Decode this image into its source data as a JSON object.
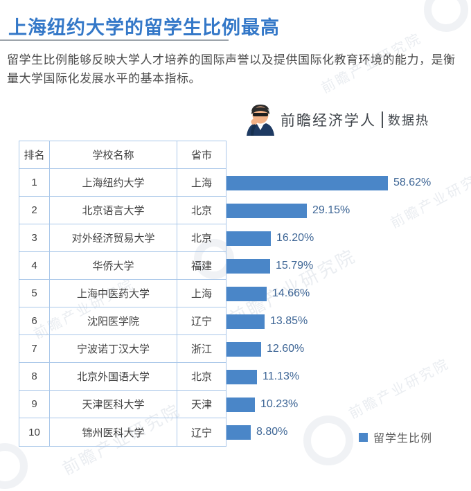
{
  "page": {
    "title": "上海纽约大学的留学生比例最高",
    "description": "留学生比例能够反映大学人才培养的国际声誉以及提供国际化教育环境的能力，是衡量大学国际化发展水平的基本指标。"
  },
  "brand": {
    "name": "前瞻经济学人",
    "divider": "|",
    "sub": "数据热",
    "avatar_icon": "thinking-man-avatar"
  },
  "watermark": {
    "text": "前瞻产业研究院"
  },
  "table": {
    "headers": [
      "排名",
      "学校名称",
      "省市"
    ]
  },
  "chart_data": {
    "type": "bar",
    "orientation": "horizontal",
    "title": "上海纽约大学的留学生比例最高",
    "series_name": "留学生比例",
    "unit": "%",
    "ranks": [
      "1",
      "2",
      "3",
      "4",
      "5",
      "6",
      "7",
      "8",
      "9",
      "10"
    ],
    "categories": [
      "上海纽约大学",
      "北京语言大学",
      "对外经济贸易大学",
      "华侨大学",
      "上海中医药大学",
      "沈阳医学院",
      "宁波诺丁汉大学",
      "北京外国语大学",
      "天津医科大学",
      "锦州医科大学"
    ],
    "provinces": [
      "上海",
      "北京",
      "北京",
      "福建",
      "上海",
      "辽宁",
      "浙江",
      "北京",
      "天津",
      "辽宁"
    ],
    "values": [
      58.62,
      29.15,
      16.2,
      15.79,
      14.66,
      13.85,
      12.6,
      11.13,
      10.23,
      8.8
    ],
    "value_labels": [
      "58.62%",
      "29.15%",
      "16.20%",
      "15.79%",
      "14.66%",
      "13.85%",
      "12.60%",
      "11.13%",
      "10.23%",
      "8.80%"
    ],
    "xlim": [
      0,
      60
    ],
    "grid": false,
    "legend_position": "bottom-right",
    "bar_color": "#4A86C8",
    "label_color": "#3D6595"
  }
}
